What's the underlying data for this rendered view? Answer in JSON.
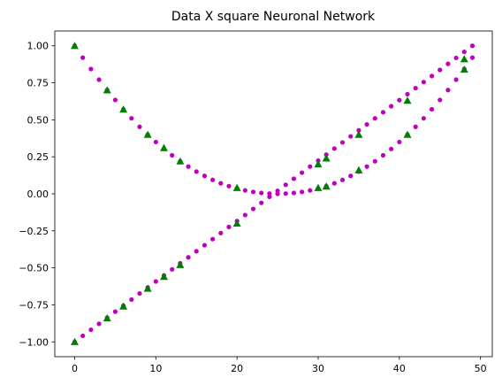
{
  "chart_data": {
    "type": "scatter",
    "title": "Data X square Neuronal Network",
    "xlabel": "",
    "ylabel": "",
    "xlim": [
      -2.45,
      51.45
    ],
    "ylim": [
      -1.1,
      1.1
    ],
    "x_ticks": [
      0,
      10,
      20,
      30,
      40,
      50
    ],
    "x_tick_labels": [
      "0",
      "10",
      "20",
      "30",
      "40",
      "50"
    ],
    "y_ticks": [
      -1.0,
      -0.75,
      -0.5,
      -0.25,
      0.0,
      0.25,
      0.5,
      0.75,
      1.0
    ],
    "y_tick_labels": [
      "−1.00",
      "−0.75",
      "−0.50",
      "−0.25",
      "0.00",
      "0.25",
      "0.50",
      "0.75",
      "1.00"
    ],
    "grid": false,
    "legend": null,
    "series": [
      {
        "marker": "circle",
        "color": "#bf00bf",
        "points": [
          [
            0,
            -1.0
          ],
          [
            1,
            -0.959
          ],
          [
            2,
            -0.918
          ],
          [
            3,
            -0.878
          ],
          [
            4,
            -0.837
          ],
          [
            5,
            -0.796
          ],
          [
            6,
            -0.755
          ],
          [
            7,
            -0.714
          ],
          [
            8,
            -0.673
          ],
          [
            9,
            -0.633
          ],
          [
            10,
            -0.592
          ],
          [
            11,
            -0.551
          ],
          [
            12,
            -0.51
          ],
          [
            13,
            -0.469
          ],
          [
            14,
            -0.429
          ],
          [
            15,
            -0.388
          ],
          [
            16,
            -0.347
          ],
          [
            17,
            -0.306
          ],
          [
            18,
            -0.265
          ],
          [
            19,
            -0.224
          ],
          [
            20,
            -0.184
          ],
          [
            21,
            -0.143
          ],
          [
            22,
            -0.102
          ],
          [
            23,
            -0.061
          ],
          [
            24,
            -0.02
          ],
          [
            25,
            0.02
          ],
          [
            26,
            0.061
          ],
          [
            27,
            0.102
          ],
          [
            28,
            0.143
          ],
          [
            29,
            0.184
          ],
          [
            30,
            0.224
          ],
          [
            31,
            0.265
          ],
          [
            32,
            0.306
          ],
          [
            33,
            0.347
          ],
          [
            34,
            0.388
          ],
          [
            35,
            0.429
          ],
          [
            36,
            0.469
          ],
          [
            37,
            0.51
          ],
          [
            38,
            0.551
          ],
          [
            39,
            0.592
          ],
          [
            40,
            0.633
          ],
          [
            41,
            0.673
          ],
          [
            42,
            0.714
          ],
          [
            43,
            0.755
          ],
          [
            44,
            0.796
          ],
          [
            45,
            0.837
          ],
          [
            46,
            0.878
          ],
          [
            47,
            0.918
          ],
          [
            48,
            0.959
          ],
          [
            49,
            1.0
          ],
          [
            0,
            1.0
          ],
          [
            1,
            0.92
          ],
          [
            2,
            0.843
          ],
          [
            3,
            0.771
          ],
          [
            4,
            0.701
          ],
          [
            5,
            0.634
          ],
          [
            6,
            0.571
          ],
          [
            7,
            0.51
          ],
          [
            8,
            0.453
          ],
          [
            9,
            0.4
          ],
          [
            10,
            0.35
          ],
          [
            11,
            0.303
          ],
          [
            12,
            0.26
          ],
          [
            13,
            0.22
          ],
          [
            14,
            0.184
          ],
          [
            15,
            0.15
          ],
          [
            16,
            0.121
          ],
          [
            17,
            0.094
          ],
          [
            18,
            0.071
          ],
          [
            19,
            0.052
          ],
          [
            20,
            0.036
          ],
          [
            21,
            0.023
          ],
          [
            22,
            0.013
          ],
          [
            23,
            0.006
          ],
          [
            24,
            0.002
          ],
          [
            25,
            0.0
          ],
          [
            26,
            0.002
          ],
          [
            27,
            0.006
          ],
          [
            28,
            0.013
          ],
          [
            29,
            0.023
          ],
          [
            30,
            0.036
          ],
          [
            31,
            0.052
          ],
          [
            32,
            0.071
          ],
          [
            33,
            0.094
          ],
          [
            34,
            0.121
          ],
          [
            35,
            0.15
          ],
          [
            36,
            0.184
          ],
          [
            37,
            0.22
          ],
          [
            38,
            0.26
          ],
          [
            39,
            0.303
          ],
          [
            40,
            0.35
          ],
          [
            41,
            0.4
          ],
          [
            42,
            0.453
          ],
          [
            43,
            0.51
          ],
          [
            44,
            0.571
          ],
          [
            45,
            0.634
          ],
          [
            46,
            0.701
          ],
          [
            47,
            0.771
          ],
          [
            48,
            0.843
          ],
          [
            49,
            0.92
          ]
        ]
      },
      {
        "marker": "triangle",
        "color": "#008000",
        "points": [
          [
            0,
            1.0
          ],
          [
            4,
            0.7
          ],
          [
            6,
            0.57
          ],
          [
            9,
            0.4
          ],
          [
            11,
            0.31
          ],
          [
            13,
            0.22
          ],
          [
            20,
            0.04
          ],
          [
            30,
            0.2
          ],
          [
            31,
            0.24
          ],
          [
            35,
            0.4
          ],
          [
            41,
            0.63
          ],
          [
            48,
            0.91
          ],
          [
            0,
            -1.0
          ],
          [
            4,
            -0.84
          ],
          [
            6,
            -0.76
          ],
          [
            9,
            -0.64
          ],
          [
            11,
            -0.56
          ],
          [
            13,
            -0.48
          ],
          [
            20,
            -0.2
          ],
          [
            30,
            0.04
          ],
          [
            31,
            0.05
          ],
          [
            35,
            0.16
          ],
          [
            41,
            0.4
          ],
          [
            48,
            0.84
          ]
        ]
      }
    ]
  }
}
